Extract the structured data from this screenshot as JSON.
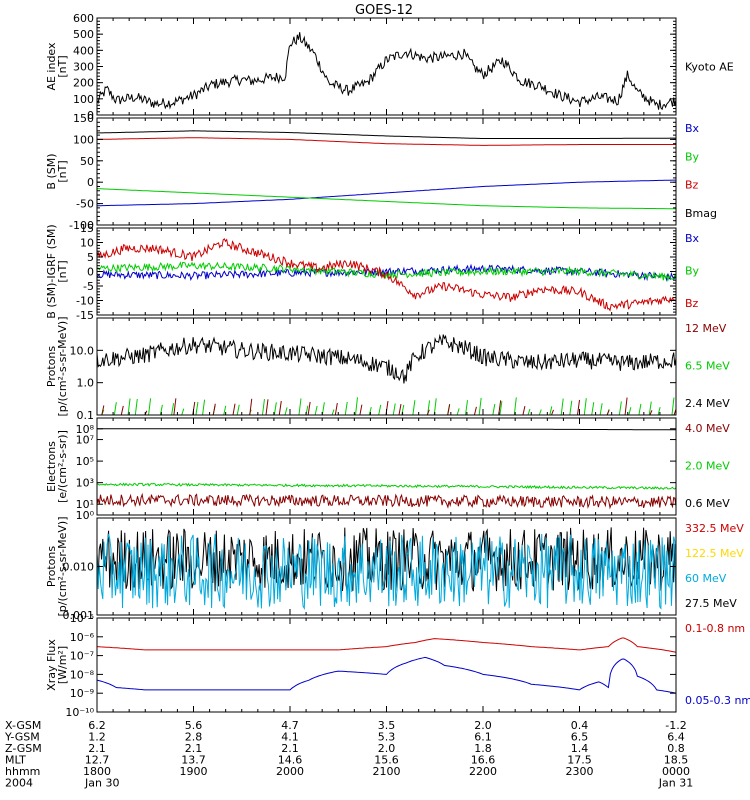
{
  "title": "GOES-12",
  "colors": {
    "black": "#000000",
    "red": "#cc0000",
    "green": "#00cc00",
    "blue": "#0000cc",
    "darkred": "#880000",
    "cyan": "#00aadd",
    "yellow": "#ffd800"
  },
  "x_axis": {
    "ticks": [
      {
        "x_gsm": "6.2",
        "y_gsm": "1.2",
        "z_gsm": "2.1",
        "mlt": "12.7",
        "hhmm": "1800",
        "date": "Jan 30"
      },
      {
        "x_gsm": "5.6",
        "y_gsm": "2.8",
        "z_gsm": "2.1",
        "mlt": "13.7",
        "hhmm": "1900",
        "date": ""
      },
      {
        "x_gsm": "4.7",
        "y_gsm": "4.1",
        "z_gsm": "2.1",
        "mlt": "14.6",
        "hhmm": "2000",
        "date": ""
      },
      {
        "x_gsm": "3.5",
        "y_gsm": "5.3",
        "z_gsm": "2.0",
        "mlt": "15.6",
        "hhmm": "2100",
        "date": ""
      },
      {
        "x_gsm": "2.0",
        "y_gsm": "6.1",
        "z_gsm": "1.8",
        "mlt": "16.6",
        "hhmm": "2200",
        "date": ""
      },
      {
        "x_gsm": "0.4",
        "y_gsm": "6.5",
        "z_gsm": "1.4",
        "mlt": "17.5",
        "hhmm": "2300",
        "date": ""
      },
      {
        "x_gsm": "-1.2",
        "y_gsm": "6.4",
        "z_gsm": "0.8",
        "mlt": "18.5",
        "hhmm": "0000",
        "date": "Jan 31"
      }
    ],
    "row_labels": [
      "X-GSM",
      "Y-GSM",
      "Z-GSM",
      "MLT",
      "hhmm",
      "2004"
    ]
  },
  "chart_data": [
    {
      "type": "line",
      "id": "ae",
      "ylabel": "AE index\n[nT]",
      "ylim": [
        0,
        600
      ],
      "log": false,
      "yticks": [
        {
          "v": 0,
          "label": "0"
        },
        {
          "v": 100,
          "label": "100"
        },
        {
          "v": 200,
          "label": "200"
        },
        {
          "v": 300,
          "label": "300"
        },
        {
          "v": 400,
          "label": "400"
        },
        {
          "v": 500,
          "label": "500"
        },
        {
          "v": 600,
          "label": "600"
        }
      ],
      "series": [
        {
          "name": "Kyoto AE",
          "color": "black",
          "style": "noisy",
          "noise": 15,
          "x": [
            18.0,
            18.1,
            18.2,
            18.4,
            18.6,
            18.8,
            19.0,
            19.2,
            19.5,
            19.6,
            19.8,
            19.95,
            20.0,
            20.1,
            20.25,
            20.4,
            20.6,
            20.8,
            21.0,
            21.2,
            21.4,
            21.6,
            21.8,
            21.9,
            22.0,
            22.2,
            22.4,
            22.6,
            22.8,
            23.0,
            23.2,
            23.4,
            23.5,
            23.6,
            23.8,
            24.0
          ],
          "y": [
            80,
            160,
            90,
            110,
            70,
            80,
            120,
            190,
            220,
            210,
            230,
            240,
            440,
            480,
            380,
            200,
            150,
            200,
            340,
            390,
            350,
            360,
            380,
            300,
            250,
            340,
            210,
            180,
            120,
            80,
            110,
            90,
            250,
            140,
            60,
            90
          ]
        }
      ]
    },
    {
      "type": "line",
      "id": "b",
      "ylabel": "B (SM)\n[nT]",
      "ylim": [
        -100,
        150
      ],
      "log": false,
      "yticks": [
        {
          "v": -100,
          "label": "-100"
        },
        {
          "v": -50,
          "label": "-50"
        },
        {
          "v": 0,
          "label": "0"
        },
        {
          "v": 50,
          "label": "50"
        },
        {
          "v": 100,
          "label": "100"
        },
        {
          "v": 150,
          "label": "150"
        }
      ],
      "series": [
        {
          "name": "Bx",
          "color": "blue",
          "style": "smooth",
          "x": [
            18,
            19,
            20,
            21,
            22,
            23,
            24
          ],
          "y": [
            -55,
            -50,
            -40,
            -25,
            -10,
            0,
            5
          ]
        },
        {
          "name": "By",
          "color": "green",
          "style": "smooth",
          "x": [
            18,
            19,
            20,
            21,
            22,
            23,
            24
          ],
          "y": [
            -15,
            -25,
            -35,
            -45,
            -55,
            -60,
            -62
          ]
        },
        {
          "name": "Bz",
          "color": "red",
          "style": "smooth",
          "x": [
            18,
            19,
            20,
            21,
            22,
            23,
            24
          ],
          "y": [
            100,
            104,
            100,
            90,
            86,
            88,
            88
          ]
        },
        {
          "name": "Bmag",
          "color": "black",
          "style": "smooth",
          "x": [
            18,
            19,
            20,
            21,
            22,
            23,
            24
          ],
          "y": [
            115,
            120,
            116,
            108,
            102,
            102,
            103
          ]
        }
      ]
    },
    {
      "type": "line",
      "id": "bigrf",
      "ylabel": "B (SM)-IGRF (SM)\n[nT]",
      "ylim": [
        -15,
        15
      ],
      "log": false,
      "yticks": [
        {
          "v": -15,
          "label": "-15"
        },
        {
          "v": -10,
          "label": "-10"
        },
        {
          "v": -5,
          "label": "-5"
        },
        {
          "v": 0,
          "label": "0"
        },
        {
          "v": 5,
          "label": "5"
        },
        {
          "v": 10,
          "label": "10"
        },
        {
          "v": 15,
          "label": "15"
        }
      ],
      "series": [
        {
          "name": "Bx",
          "color": "blue",
          "style": "noisy",
          "noise": 0.6,
          "x": [
            18,
            19,
            20,
            21,
            22,
            23,
            24
          ],
          "y": [
            -1,
            -1.5,
            -0.5,
            0,
            1,
            0,
            -2
          ]
        },
        {
          "name": "By",
          "color": "green",
          "style": "noisy",
          "noise": 0.6,
          "x": [
            18,
            19,
            20,
            21,
            22,
            23,
            24
          ],
          "y": [
            1,
            2,
            1,
            -1,
            0,
            0,
            -2
          ]
        },
        {
          "name": "Bz",
          "color": "red",
          "style": "noisy",
          "noise": 0.7,
          "x": [
            18.0,
            18.3,
            18.6,
            19.0,
            19.3,
            19.6,
            20.0,
            20.3,
            20.6,
            21.0,
            21.3,
            21.6,
            22.0,
            22.3,
            22.6,
            23.0,
            23.3,
            23.6,
            24.0
          ],
          "y": [
            5,
            8,
            8,
            5,
            10,
            7,
            3,
            1,
            3,
            -1,
            -8,
            -5,
            -8,
            -9,
            -6,
            -7,
            -12,
            -11,
            -9
          ]
        }
      ]
    },
    {
      "type": "line",
      "id": "protons1",
      "ylabel": "Protons\n[p/(cm²-s-sr-MeV)]",
      "ylim": [
        0.1,
        100
      ],
      "log": true,
      "yticks": [
        {
          "v": 0.1,
          "label": "0.1"
        },
        {
          "v": 1,
          "label": "1.0"
        },
        {
          "v": 10,
          "label": "10.0"
        }
      ],
      "series": [
        {
          "name": "2.4 MeV",
          "color": "black",
          "style": "noisy_log",
          "noise": 0.12,
          "x": [
            18.0,
            18.5,
            19.0,
            19.5,
            20.0,
            20.5,
            21.0,
            21.2,
            21.4,
            21.6,
            22.0,
            22.5,
            23.0,
            23.5,
            24.0
          ],
          "y": [
            5,
            7,
            15,
            10,
            8,
            6,
            3,
            1.5,
            10,
            18,
            6,
            4,
            5,
            4,
            5
          ]
        },
        {
          "name": "6.5 MeV",
          "color": "green",
          "style": "spikes",
          "x": [
            18,
            24
          ],
          "y": [
            0.15,
            0.15
          ]
        },
        {
          "name": "12 MeV",
          "color": "darkred",
          "style": "spikes_sparse",
          "x": [
            18,
            24
          ],
          "y": [
            0.12,
            0.12
          ]
        }
      ]
    },
    {
      "type": "line",
      "id": "electrons",
      "ylabel": "Electrons\n[e/(cm²-s-sr)]",
      "ylim": [
        1,
        1000000000
      ],
      "log": true,
      "yticks": [
        {
          "v": 1,
          "label": "10⁰"
        },
        {
          "v": 10,
          "label": "10¹"
        },
        {
          "v": 1000,
          "label": "10³"
        },
        {
          "v": 100000,
          "label": "10⁵"
        },
        {
          "v": 10000000,
          "label": "10⁷"
        },
        {
          "v": 100000000,
          "label": "10⁸"
        }
      ],
      "series": [
        {
          "name": "0.6 MeV",
          "color": "black",
          "style": "smooth",
          "x": [
            18,
            21,
            24
          ],
          "y": [
            100000000,
            100000000,
            80000000
          ]
        },
        {
          "name": "2.0 MeV",
          "color": "green",
          "style": "noisy_log",
          "noise": 0.05,
          "x": [
            18,
            21,
            24
          ],
          "y": [
            700,
            500,
            300
          ]
        },
        {
          "name": "4.0 MeV",
          "color": "darkred",
          "style": "noisy_log",
          "noise": 0.25,
          "x": [
            18,
            21,
            24
          ],
          "y": [
            25,
            20,
            15
          ]
        }
      ]
    },
    {
      "type": "line",
      "id": "protons2",
      "ylabel": "Protons\n[p/(cm²-s-sr-MeV)]",
      "ylim": [
        0.001,
        0.1
      ],
      "log": true,
      "yticks": [
        {
          "v": 0.001,
          "label": "0.001"
        },
        {
          "v": 0.01,
          "label": "0.010"
        },
        {
          "v": 0.1,
          "label": ""
        }
      ],
      "series": [
        {
          "name": "27.5 MeV",
          "color": "black",
          "style": "noisy_log",
          "noise": 0.3,
          "x": [
            18,
            24
          ],
          "y": [
            0.014,
            0.014
          ]
        },
        {
          "name": "60 MeV",
          "color": "cyan",
          "style": "noisy_log",
          "noise": 0.35,
          "x": [
            18,
            24
          ],
          "y": [
            0.008,
            0.008
          ]
        },
        {
          "name": "122.5 MeV",
          "color": "yellow",
          "style": "none",
          "x": [
            18,
            24
          ],
          "y": [
            0.002,
            0.002
          ]
        },
        {
          "name": "332.5 MeV",
          "color": "red",
          "style": "none",
          "x": [
            18,
            24
          ],
          "y": [
            0.002,
            0.002
          ]
        }
      ]
    },
    {
      "type": "line",
      "id": "xray",
      "ylabel": "Xray Flux\n[W/m²]",
      "ylim": [
        1e-10,
        1e-05
      ],
      "log": true,
      "yticks": [
        {
          "v": 1e-10,
          "label": "10⁻¹⁰"
        },
        {
          "v": 1e-09,
          "label": "10⁻⁹"
        },
        {
          "v": 1e-08,
          "label": "10⁻⁸"
        },
        {
          "v": 1e-07,
          "label": "10⁻⁷"
        },
        {
          "v": 1e-06,
          "label": "10⁻⁶"
        },
        {
          "v": 1e-05,
          "label": "10⁻⁵"
        }
      ],
      "series": [
        {
          "name": "0.1-0.8 nm",
          "color": "red",
          "style": "smooth",
          "x": [
            18.0,
            18.5,
            19.0,
            19.5,
            20.0,
            20.5,
            21.0,
            21.3,
            21.5,
            22.0,
            22.5,
            23.0,
            23.3,
            23.45,
            23.6,
            24.0
          ],
          "y": [
            3e-07,
            2e-07,
            2e-07,
            2e-07,
            2e-07,
            2e-07,
            3e-07,
            5e-07,
            8e-07,
            5e-07,
            3e-07,
            2e-07,
            3e-07,
            9e-07,
            3e-07,
            1.5e-07
          ]
        },
        {
          "name": "0.05-0.3 nm",
          "color": "blue",
          "style": "smooth",
          "x": [
            18.0,
            18.2,
            18.5,
            19.0,
            19.5,
            20.0,
            20.2,
            20.5,
            21.0,
            21.2,
            21.4,
            21.6,
            22.0,
            22.5,
            23.0,
            23.2,
            23.3,
            23.45,
            23.6,
            23.8,
            24.0
          ],
          "y": [
            5e-09,
            2e-09,
            1.5e-09,
            1.5e-09,
            1.5e-09,
            1.5e-09,
            5e-09,
            1.5e-08,
            1e-08,
            4e-08,
            8e-08,
            3e-08,
            1e-08,
            3e-09,
            1.5e-09,
            4e-09,
            2e-09,
            7e-08,
            8e-09,
            1.5e-09,
            1e-09
          ]
        }
      ]
    }
  ],
  "legends": [
    [
      {
        "label": "Kyoto AE",
        "color": "black"
      }
    ],
    [
      {
        "label": "Bx",
        "color": "blue"
      },
      {
        "label": "By",
        "color": "green"
      },
      {
        "label": "Bz",
        "color": "red"
      },
      {
        "label": "Bmag",
        "color": "black"
      }
    ],
    [
      {
        "label": "Bx",
        "color": "blue"
      },
      {
        "label": "By",
        "color": "green"
      },
      {
        "label": "Bz",
        "color": "red"
      }
    ],
    [
      {
        "label": "12 MeV",
        "color": "darkred"
      },
      {
        "label": "6.5 MeV",
        "color": "green"
      },
      {
        "label": "2.4 MeV",
        "color": "black"
      }
    ],
    [
      {
        "label": "4.0 MeV",
        "color": "darkred"
      },
      {
        "label": "2.0 MeV",
        "color": "green"
      },
      {
        "label": "0.6 MeV",
        "color": "black"
      }
    ],
    [
      {
        "label": "332.5 MeV",
        "color": "red"
      },
      {
        "label": "122.5 MeV",
        "color": "yellow"
      },
      {
        "label": "60 MeV",
        "color": "cyan"
      },
      {
        "label": "27.5 MeV",
        "color": "black"
      }
    ],
    [
      {
        "label": "0.1-0.8 nm",
        "color": "red"
      },
      {
        "label": "0.05-0.3 nm",
        "color": "blue"
      }
    ]
  ]
}
